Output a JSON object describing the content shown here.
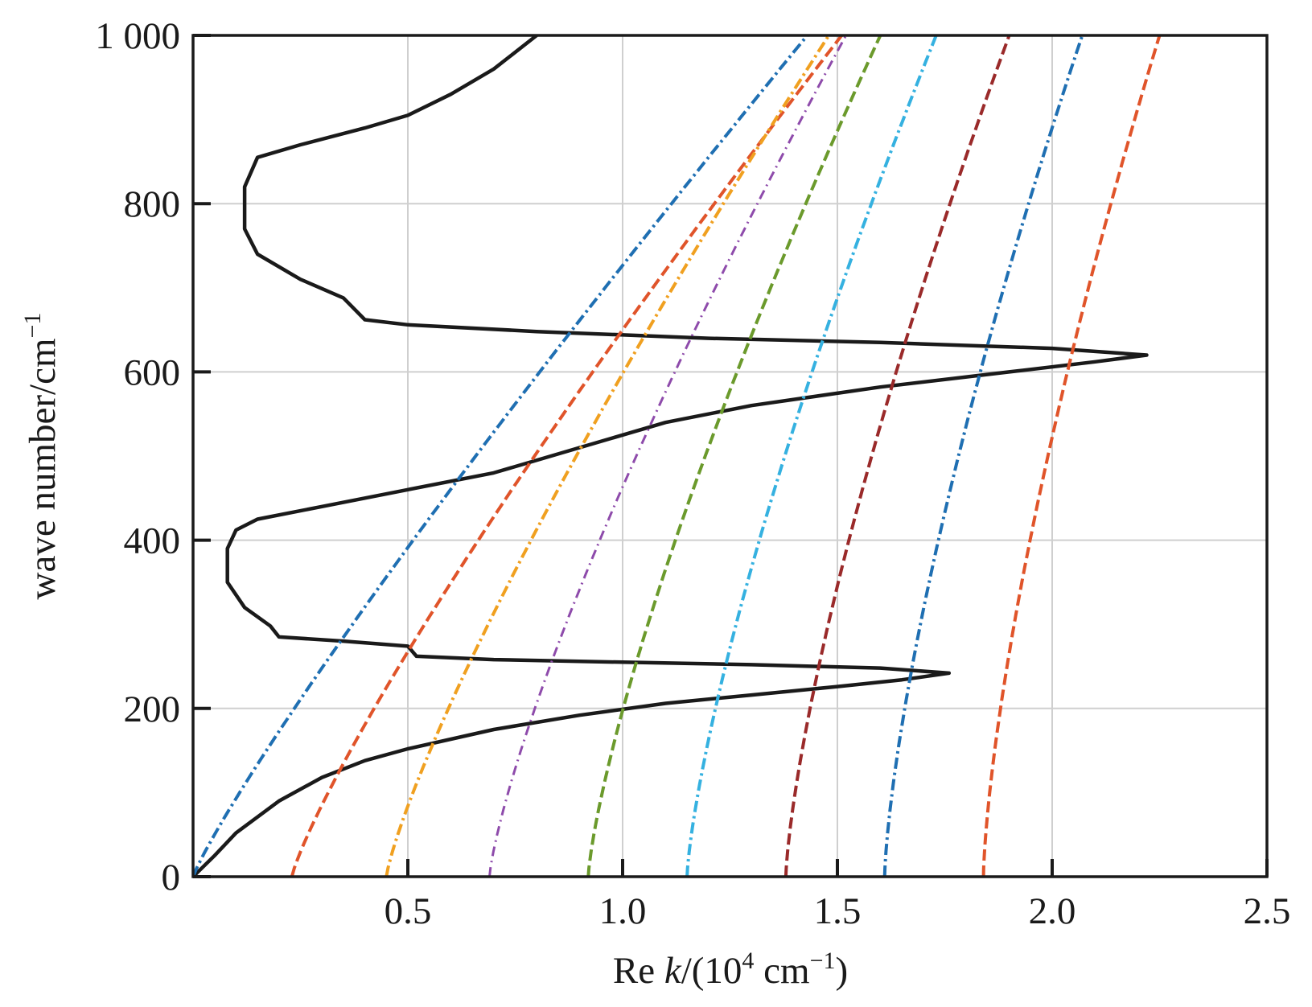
{
  "chart_data": {
    "type": "line",
    "xlabel": {
      "prefix": "Re ",
      "var": "k",
      "mid": "/(10",
      "sup1": "4",
      "unit": " cm",
      "sup2": "−1",
      "close": ")"
    },
    "ylabel": {
      "text": "wave number/cm",
      "sup": "−1"
    },
    "xlim": [
      0,
      2.5
    ],
    "ylim": [
      0,
      1000
    ],
    "x_ticks": [
      {
        "value": 0.5,
        "label": "0.5"
      },
      {
        "value": 1.0,
        "label": "1.0"
      },
      {
        "value": 1.5,
        "label": "1.5"
      },
      {
        "value": 2.0,
        "label": "2.0"
      },
      {
        "value": 2.5,
        "label": "2.5"
      }
    ],
    "y_ticks": [
      {
        "value": 0,
        "label": "0"
      },
      {
        "value": 200,
        "label": "200"
      },
      {
        "value": 400,
        "label": "400"
      },
      {
        "value": 600,
        "label": "600"
      },
      {
        "value": 800,
        "label": "800"
      },
      {
        "value": 1000,
        "label": "1 000"
      }
    ],
    "grid": true,
    "legend": "none",
    "series": [
      {
        "color": "#1a1a1a",
        "style": "solid",
        "points": [
          [
            0,
            0
          ],
          [
            0.05,
            25
          ],
          [
            0.1,
            52
          ],
          [
            0.2,
            90
          ],
          [
            0.3,
            118
          ],
          [
            0.4,
            138
          ],
          [
            0.5,
            152
          ],
          [
            0.7,
            175
          ],
          [
            0.9,
            192
          ],
          [
            1.1,
            206
          ],
          [
            1.3,
            216
          ],
          [
            1.5,
            226
          ],
          [
            1.65,
            234
          ],
          [
            1.76,
            242
          ],
          [
            1.6,
            248
          ],
          [
            1.3,
            252
          ],
          [
            1.0,
            255
          ],
          [
            0.7,
            258
          ],
          [
            0.52,
            262
          ],
          [
            0.5,
            274
          ],
          [
            0.35,
            280
          ],
          [
            0.2,
            285
          ],
          [
            0.18,
            298
          ],
          [
            0.12,
            320
          ],
          [
            0.08,
            350
          ],
          [
            0.08,
            390
          ],
          [
            0.1,
            412
          ],
          [
            0.15,
            425
          ],
          [
            0.3,
            440
          ],
          [
            0.5,
            460
          ],
          [
            0.7,
            480
          ],
          [
            0.9,
            510
          ],
          [
            1.1,
            540
          ],
          [
            1.3,
            560
          ],
          [
            1.6,
            582
          ],
          [
            1.9,
            600
          ],
          [
            2.1,
            612
          ],
          [
            2.22,
            620
          ],
          [
            2.0,
            628
          ],
          [
            1.6,
            635
          ],
          [
            1.2,
            640
          ],
          [
            0.8,
            648
          ],
          [
            0.5,
            656
          ],
          [
            0.4,
            662
          ],
          [
            0.35,
            688
          ],
          [
            0.25,
            710
          ],
          [
            0.15,
            740
          ],
          [
            0.12,
            770
          ],
          [
            0.12,
            820
          ],
          [
            0.15,
            855
          ],
          [
            0.25,
            870
          ],
          [
            0.4,
            890
          ],
          [
            0.5,
            905
          ],
          [
            0.6,
            930
          ],
          [
            0.7,
            960
          ],
          [
            0.8,
            1000
          ]
        ]
      },
      {
        "color": "#1f6fb2",
        "style": "dash-dot",
        "x0": 0,
        "slope": 0.00143,
        "exp": 1.12
      },
      {
        "color": "#e0542a",
        "style": "dashed",
        "x0": 0.23,
        "slope": 0.00128,
        "exp": 1.18
      },
      {
        "color": "#f0a020",
        "style": "dash-dot",
        "x0": 0.45,
        "slope": 0.00103,
        "exp": 1.22
      },
      {
        "color": "#8e4bab",
        "style": "dash-dot-thin",
        "x0": 0.69,
        "slope": 0.00083,
        "exp": 1.28
      },
      {
        "color": "#6b9a2c",
        "style": "dashed",
        "x0": 0.92,
        "slope": 0.00068,
        "exp": 1.32
      },
      {
        "color": "#35b1e0",
        "style": "dash-dot",
        "x0": 1.15,
        "slope": 0.00058,
        "exp": 1.35
      },
      {
        "color": "#9a2a2a",
        "style": "dashed",
        "x0": 1.38,
        "slope": 0.00052,
        "exp": 1.38
      },
      {
        "color": "#1f6fb2",
        "style": "dash-dot",
        "x0": 1.61,
        "slope": 0.00046,
        "exp": 1.42
      },
      {
        "color": "#e0542a",
        "style": "dashed",
        "x0": 1.84,
        "slope": 0.00041,
        "exp": 1.45
      }
    ]
  }
}
